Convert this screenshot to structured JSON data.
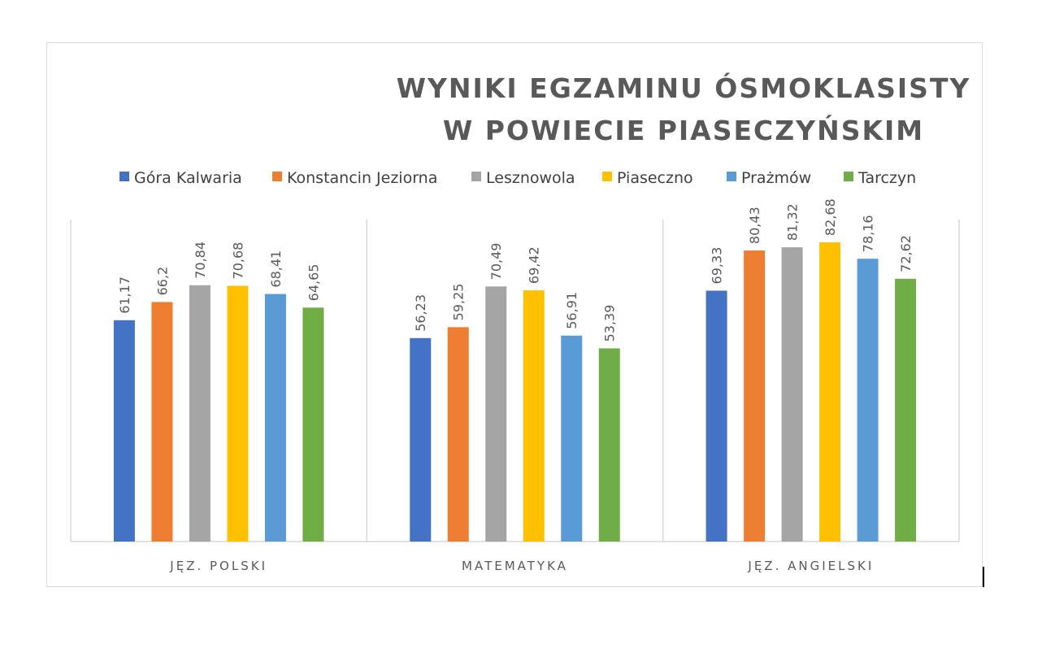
{
  "chart_data": {
    "type": "bar",
    "title": "WYNIKI EGZAMINU ÓSMOKLASISTY",
    "subtitle": "W POWIECIE PIASECZYŃSKIM",
    "xlabel": "",
    "ylabel": "",
    "ylim": [
      0,
      83
    ],
    "grid": false,
    "legend_position": "top",
    "categories": [
      "JĘZ. POLSKI",
      "MATEMATYKA",
      "JĘZ. ANGIELSKI"
    ],
    "series": [
      {
        "name": "Góra Kalwaria",
        "color": "#4472c4",
        "values": [
          61.17,
          56.23,
          69.33
        ],
        "labels": [
          "61,17",
          "56,23",
          "69,33"
        ]
      },
      {
        "name": "Konstancin Jeziorna",
        "color": "#ed7d31",
        "values": [
          66.2,
          59.25,
          80.43
        ],
        "labels": [
          "66,2",
          "59,25",
          "80,43"
        ]
      },
      {
        "name": "Lesznowola",
        "color": "#a5a5a5",
        "values": [
          70.84,
          70.49,
          81.32
        ],
        "labels": [
          "70,84",
          "70,49",
          "81,32"
        ]
      },
      {
        "name": "Piaseczno",
        "color": "#ffc000",
        "values": [
          70.68,
          69.42,
          82.68
        ],
        "labels": [
          "70,68",
          "69,42",
          "82,68"
        ]
      },
      {
        "name": "Prażmów",
        "color": "#5b9bd5",
        "values": [
          68.41,
          56.91,
          78.16
        ],
        "labels": [
          "68,41",
          "56,91",
          "78,16"
        ]
      },
      {
        "name": "Tarczyn",
        "color": "#70ad47",
        "values": [
          64.65,
          53.39,
          72.62
        ],
        "labels": [
          "64,65",
          "53,39",
          "72,62"
        ]
      }
    ]
  }
}
